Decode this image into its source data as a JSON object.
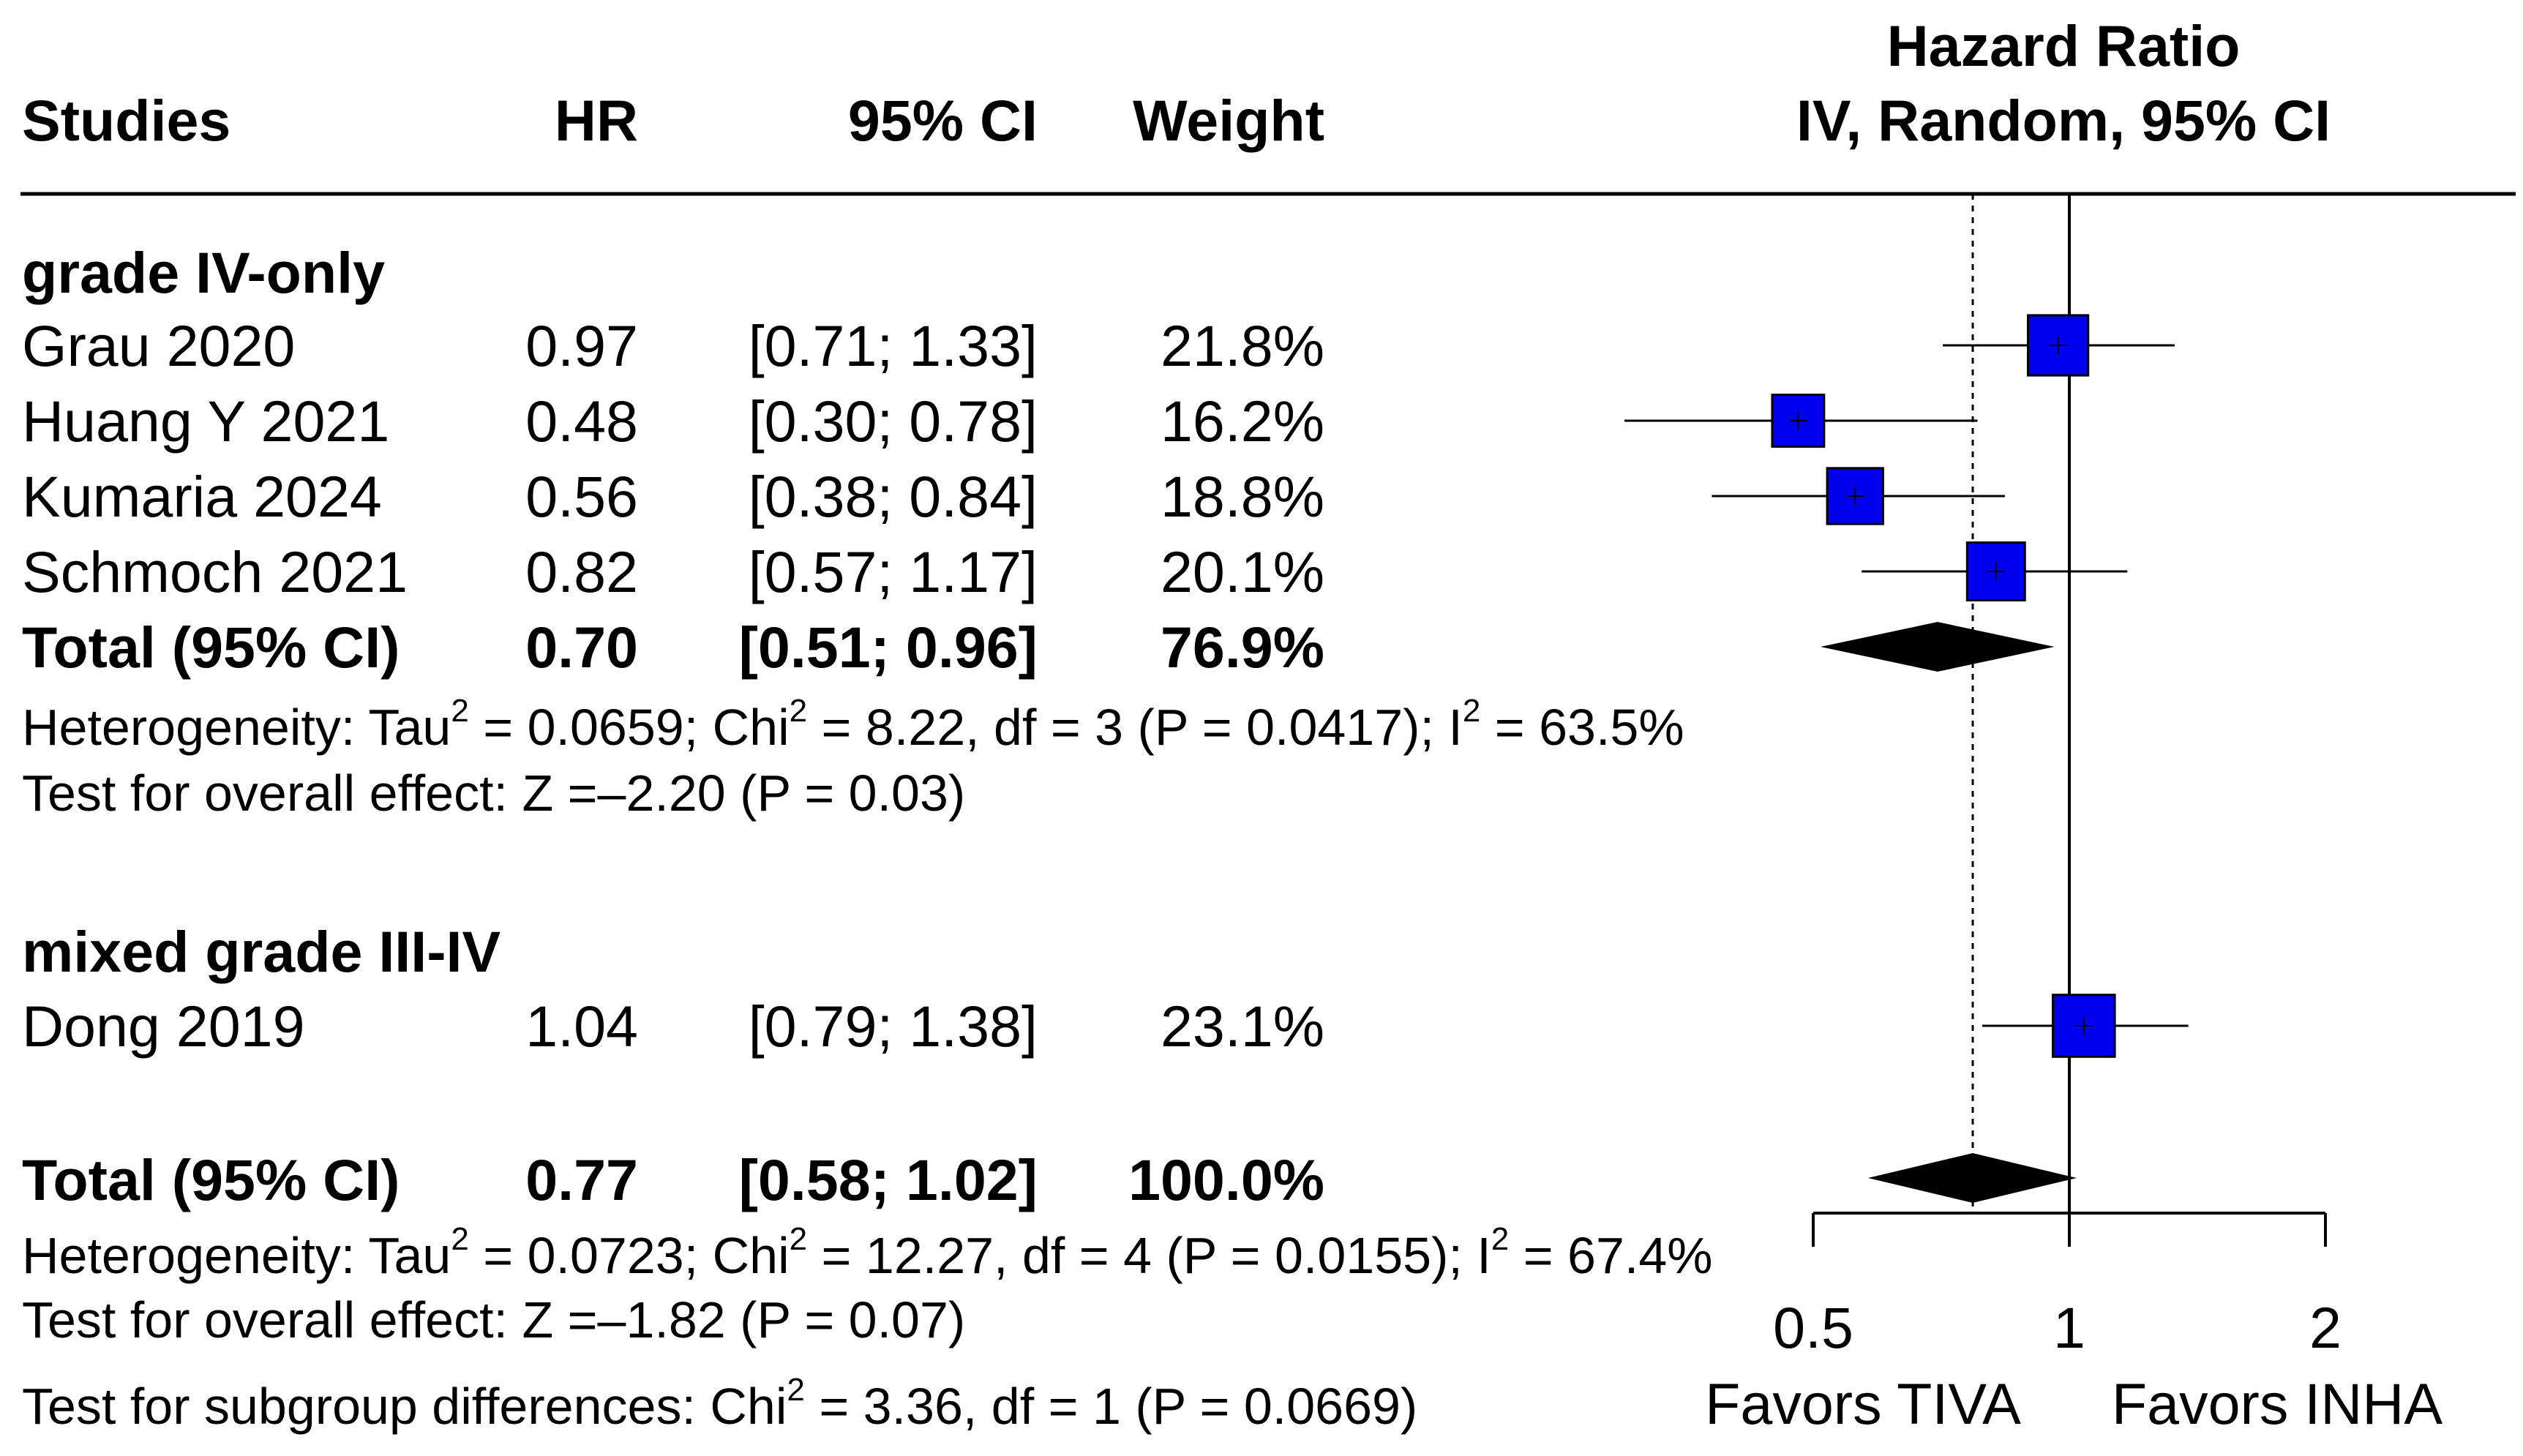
{
  "chart_data": {
    "type": "forest",
    "columns": {
      "studies": "Studies",
      "hr": "HR",
      "ci": "95% CI",
      "weight": "Weight",
      "plot_title_line1": "Hazard Ratio",
      "plot_title_line2": "IV, Random, 95% CI"
    },
    "subgroups": [
      {
        "name": "grade IV-only",
        "studies": [
          {
            "label": "Grau 2020",
            "hr_text": "0.97",
            "ci_text": "[0.71; 1.33]",
            "weight_text": "21.8%",
            "hr": 0.97,
            "lower": 0.71,
            "upper": 1.33,
            "weight": 21.8
          },
          {
            "label": "Huang Y 2021",
            "hr_text": "0.48",
            "ci_text": "[0.30; 0.78]",
            "weight_text": "16.2%",
            "hr": 0.48,
            "lower": 0.3,
            "upper": 0.78,
            "weight": 16.2
          },
          {
            "label": "Kumaria 2024",
            "hr_text": "0.56",
            "ci_text": "[0.38; 0.84]",
            "weight_text": "18.8%",
            "hr": 0.56,
            "lower": 0.38,
            "upper": 0.84,
            "weight": 18.8
          },
          {
            "label": "Schmoch 2021",
            "hr_text": "0.82",
            "ci_text": "[0.57; 1.17]",
            "weight_text": "20.1%",
            "hr": 0.82,
            "lower": 0.57,
            "upper": 1.17,
            "weight": 20.1
          }
        ],
        "total": {
          "label": "Total (95% CI)",
          "hr_text": "0.70",
          "ci_text": "[0.51; 0.96]",
          "weight_text": "76.9%",
          "hr": 0.7,
          "lower": 0.51,
          "upper": 0.96
        },
        "heterogeneity": {
          "prefix": "Heterogeneity: Tau",
          "tau2": " = 0.0659; Chi",
          "chi2": " = 8.22, df = 3 (P = 0.0417); I",
          "i2": " = 63.5%",
          "sup": "2"
        },
        "overall_effect": "Test for overall effect: Z =–2.20 (P = 0.03)"
      },
      {
        "name": "mixed grade III-IV",
        "studies": [
          {
            "label": "Dong 2019",
            "hr_text": "1.04",
            "ci_text": "[0.79; 1.38]",
            "weight_text": "23.1%",
            "hr": 1.04,
            "lower": 0.79,
            "upper": 1.38,
            "weight": 23.1
          }
        ]
      }
    ],
    "overall": {
      "label": "Total (95% CI)",
      "hr_text": "0.77",
      "ci_text": "[0.58; 1.02]",
      "weight_text": "100.0%",
      "hr": 0.77,
      "lower": 0.58,
      "upper": 1.02,
      "heterogeneity": {
        "prefix": "Heterogeneity: Tau",
        "tau2": " = 0.0723; Chi",
        "chi2": " = 12.27, df = 4 (P = 0.0155); I",
        "i2": " = 67.4%",
        "sup": "2"
      },
      "overall_effect": "Test for overall effect: Z =–1.82 (P = 0.07)",
      "subgroup_diff": {
        "prefix": "Test for subgroup differences: Chi",
        "rest": " = 3.36, df = 1 (P = 0.0669)",
        "sup": "2"
      }
    },
    "axis": {
      "scale": "log",
      "xlim": [
        0.5,
        2
      ],
      "ticks": [
        0.5,
        1,
        2
      ],
      "tick_labels": [
        "0.5",
        "1",
        "2"
      ],
      "null_line": 1,
      "summary_line": 0.77,
      "favors_left": "Favors TIVA",
      "favors_right": "Favors INHA"
    },
    "colors": {
      "box": "#0000ee",
      "diamond": "#000000",
      "line": "#000000"
    }
  }
}
